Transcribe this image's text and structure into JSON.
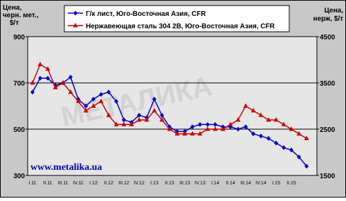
{
  "chart_data": {
    "type": "line",
    "y_label": [
      "Цена,",
      "черн. мет.,",
      "$/т"
    ],
    "y2_label": [
      "Цена,",
      "нерж, $/т"
    ],
    "watermark": "МЕТАЛИКА",
    "site": "www.metalika.ua",
    "categories": [
      "I.11",
      null,
      "II.11",
      null,
      "III.11",
      null,
      "IV.11",
      null,
      "I.12",
      null,
      "II.12",
      null,
      "III.12",
      null,
      "IV.12",
      null,
      "I.13",
      null,
      "II.13",
      null,
      "III.13",
      null,
      "IV.13",
      null,
      "I.14",
      null,
      "II.14",
      null,
      "III.14",
      null,
      "IV.14",
      null,
      "I.15",
      null,
      "II.15",
      null,
      null
    ],
    "ylim": [
      300,
      900
    ],
    "yticks": [
      300,
      500,
      700,
      900
    ],
    "y2lim": [
      1500,
      4500
    ],
    "y2ticks": [
      1500,
      2500,
      3500,
      4500
    ],
    "grid_values": [
      500,
      700
    ],
    "series": [
      {
        "name": "Г/к лист, Юго-Восточная Азия, CFR",
        "color": "#0000cc",
        "marker": "diamond",
        "values": [
          660,
          720,
          720,
          690,
          700,
          725,
          630,
          600,
          630,
          650,
          660,
          620,
          540,
          530,
          560,
          550,
          630,
          560,
          510,
          490,
          490,
          510,
          520,
          520,
          520,
          510,
          510,
          500,
          510,
          480,
          470,
          460,
          440,
          420,
          410,
          380,
          340
        ]
      },
      {
        "name": "Нержавеющая сталь 304 2B, Юго-Восточная Азия, CFR",
        "color": "#cc0000",
        "marker": "triangle",
        "axis": "y2",
        "values": [
          3500,
          3900,
          3800,
          3400,
          3500,
          3300,
          3100,
          2900,
          3000,
          3100,
          2800,
          2600,
          2600,
          2600,
          2700,
          2700,
          2900,
          2700,
          2500,
          2400,
          2400,
          2400,
          2400,
          2500,
          2500,
          2500,
          2600,
          2700,
          3000,
          2900,
          2800,
          2700,
          2700,
          2600,
          2500,
          2400,
          2300
        ]
      }
    ]
  }
}
